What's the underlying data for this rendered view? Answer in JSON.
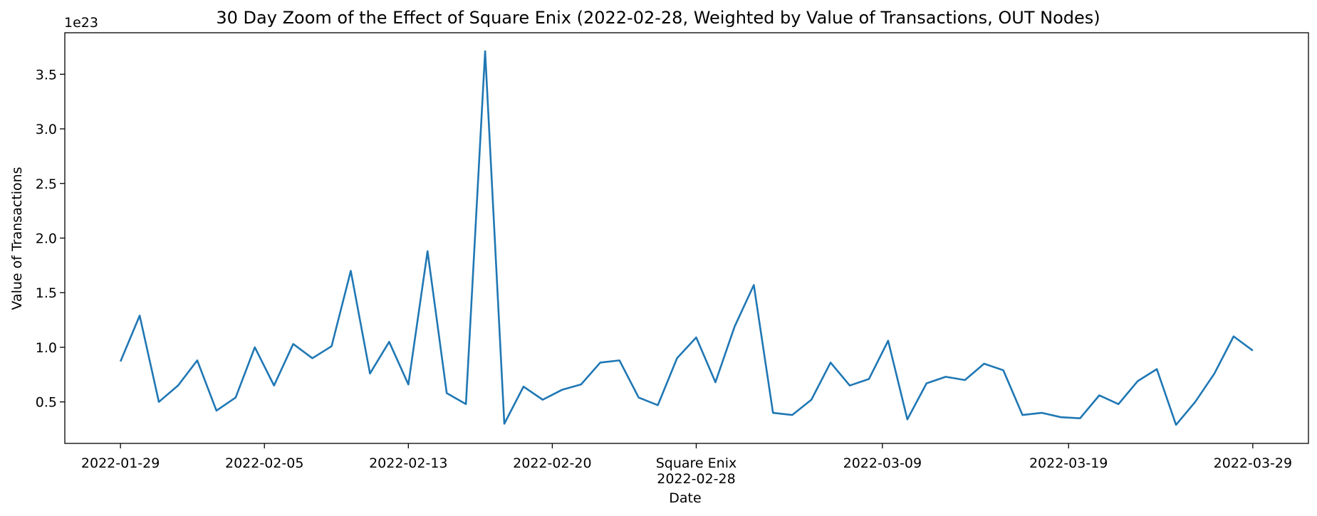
{
  "chart_data": {
    "type": "line",
    "title": "30 Day Zoom of the Effect of Square Enix (2022-02-28, Weighted by Value of Transactions, OUT Nodes)",
    "xlabel": "Date",
    "ylabel": "Value of Transactions",
    "y_offset_label": "1e23",
    "y_scale": 1e+23,
    "ylim": [
      0.12,
      3.88
    ],
    "y_ticks": [
      0.5,
      1.0,
      1.5,
      2.0,
      2.5,
      3.0,
      3.5
    ],
    "y_tick_labels": [
      "0.5",
      "1.0",
      "1.5",
      "2.0",
      "2.5",
      "3.0",
      "3.5"
    ],
    "x_tick_labels": [
      {
        "index": 0,
        "label": "2022-01-29"
      },
      {
        "index": 7.5,
        "label": "2022-02-05"
      },
      {
        "index": 15,
        "label": "2022-02-13"
      },
      {
        "index": 22.5,
        "label": "2022-02-20"
      },
      {
        "index": 30,
        "label": "Square Enix",
        "label2": "2022-02-28"
      },
      {
        "index": 39.7,
        "label": "2022-03-09"
      },
      {
        "index": 49.4,
        "label": "2022-03-19"
      },
      {
        "index": 59,
        "label": "2022-03-29"
      }
    ],
    "x_range_index": [
      -2.9,
      61.9
    ],
    "grid": false,
    "legend": "none",
    "line_color": "#1f77b4",
    "series": [
      {
        "values": [
          0.87,
          1.29,
          0.5,
          0.65,
          0.88,
          0.42,
          0.54,
          1.0,
          0.65,
          1.03,
          0.9,
          1.01,
          1.7,
          0.76,
          1.05,
          0.66,
          1.88,
          0.58,
          0.48,
          3.71,
          0.3,
          0.64,
          0.52,
          0.61,
          0.66,
          0.86,
          0.88,
          0.54,
          0.47,
          0.9,
          1.09,
          0.68,
          1.19,
          1.57,
          0.4,
          0.38,
          0.52,
          0.86,
          0.65,
          0.71,
          1.06,
          0.34,
          0.67,
          0.73,
          0.7,
          0.85,
          0.79,
          0.38,
          0.4,
          0.36,
          0.35,
          0.56,
          0.48,
          0.69,
          0.8,
          0.29,
          0.5,
          0.76,
          1.1,
          0.97
        ]
      }
    ]
  }
}
